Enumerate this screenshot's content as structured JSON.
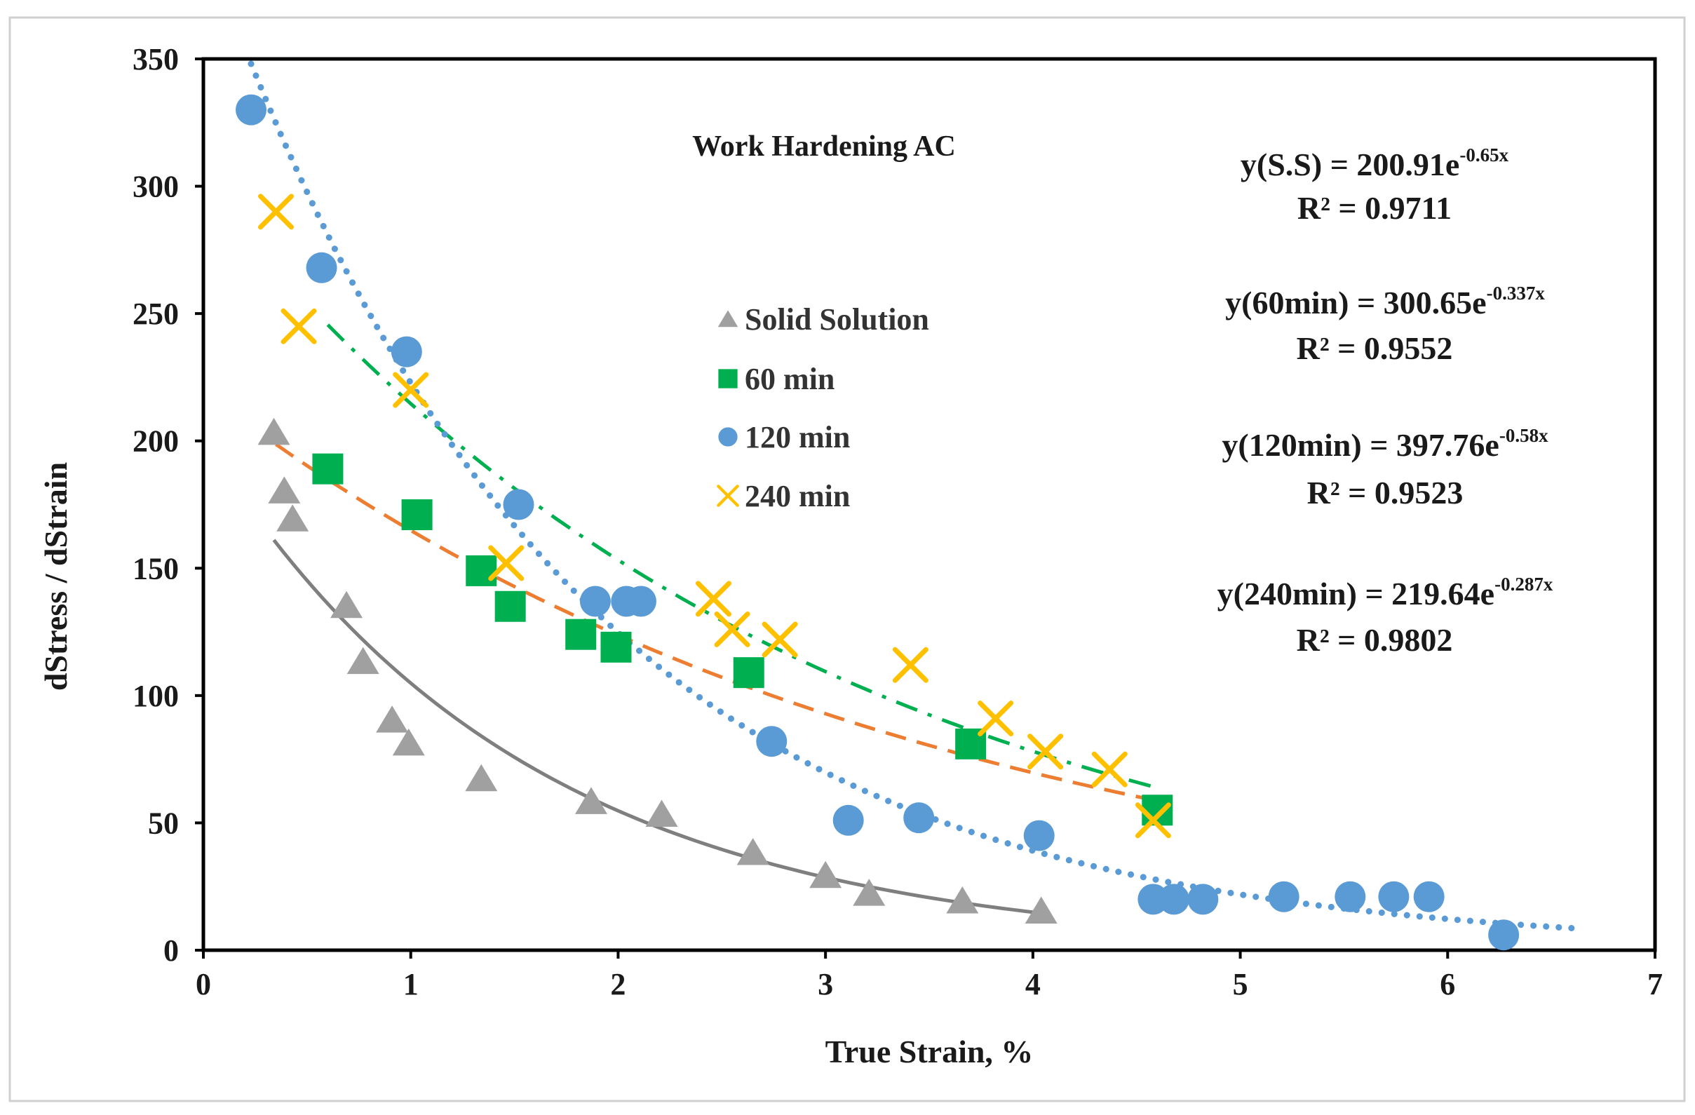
{
  "chart_data": {
    "type": "scatter",
    "title": "Work Hardening AC",
    "xlabel": "True Strain, %",
    "ylabel": "dStress / dStrain",
    "xlim": [
      0,
      7
    ],
    "ylim": [
      0,
      350
    ],
    "xticks": [
      "0",
      "1",
      "2",
      "3",
      "4",
      "5",
      "6",
      "7"
    ],
    "yticks": [
      "0",
      "50",
      "100",
      "150",
      "200",
      "250",
      "300",
      "350"
    ],
    "grid": false,
    "legend_position": "center",
    "series": [
      {
        "name": "Solid Solution",
        "marker": "triangle",
        "color": "#a0a0a0",
        "trend_color": "#7f7f7f",
        "trend_style": "solid",
        "x": [
          0.34,
          0.39,
          0.43,
          0.69,
          0.77,
          0.91,
          0.99,
          1.34,
          1.87,
          2.21,
          2.65,
          3.0,
          3.21,
          3.66,
          4.04
        ],
        "y": [
          203,
          180,
          169,
          135,
          113,
          90,
          81,
          67,
          58,
          53,
          38,
          29,
          22,
          19,
          15
        ],
        "trend": {
          "a": 200.91,
          "b": -0.65,
          "x_range": [
            0.34,
            4.04
          ]
        },
        "equation": "y(S.S) = 200.91e",
        "exponent": "-0.65x",
        "r2": "R² = 0.9711"
      },
      {
        "name": "60 min",
        "marker": "square",
        "color": "#00b050",
        "trend_color": "#00b050",
        "trend_style": "dashdot",
        "x": [
          0.6,
          1.03,
          1.34,
          1.48,
          1.82,
          1.99,
          2.63,
          3.7,
          4.6
        ],
        "y": [
          189,
          171,
          149,
          135,
          124,
          119,
          109,
          81,
          55
        ],
        "trend": {
          "a": 300.65,
          "b": -0.337,
          "x_range": [
            0.6,
            4.6
          ]
        },
        "equation": "y(60min) = 300.65e",
        "exponent": "-0.337x",
        "r2": "R² = 0.9552"
      },
      {
        "name": "120 min",
        "marker": "circle",
        "color": "#5b9bd5",
        "trend_color": "#5b9bd5",
        "trend_style": "dotted",
        "x": [
          0.23,
          0.57,
          0.98,
          1.52,
          1.89,
          2.04,
          2.11,
          2.74,
          3.11,
          3.45,
          4.03,
          4.58,
          4.68,
          4.82,
          5.21,
          5.53,
          5.74,
          5.91,
          6.27
        ],
        "y": [
          330,
          268,
          235,
          175,
          137,
          137,
          137,
          82,
          51,
          52,
          45,
          20,
          20,
          20,
          21,
          21,
          21,
          21,
          6
        ],
        "trend": {
          "a": 397.76,
          "b": -0.58,
          "x_range": [
            0.23,
            6.6
          ]
        },
        "equation": "y(120min) = 397.76e",
        "exponent": "-0.58x",
        "r2": "R² = 0.9523"
      },
      {
        "name": "240 min",
        "marker": "x",
        "color": "#ffc000",
        "trend_color": "#ed7d31",
        "trend_style": "dashed",
        "x": [
          0.35,
          0.46,
          1.0,
          1.46,
          2.46,
          2.55,
          2.78,
          3.41,
          3.82,
          4.06,
          4.37,
          4.58
        ],
        "y": [
          290,
          245,
          220,
          152,
          138,
          126,
          122,
          112,
          91,
          78,
          71,
          51
        ],
        "trend": {
          "a": 219.64,
          "b": -0.287,
          "x_range": [
            0.35,
            4.6
          ]
        },
        "equation": "y(240min) = 219.64e",
        "exponent": "-0.287x",
        "r2": "R² = 0.9802"
      }
    ]
  }
}
